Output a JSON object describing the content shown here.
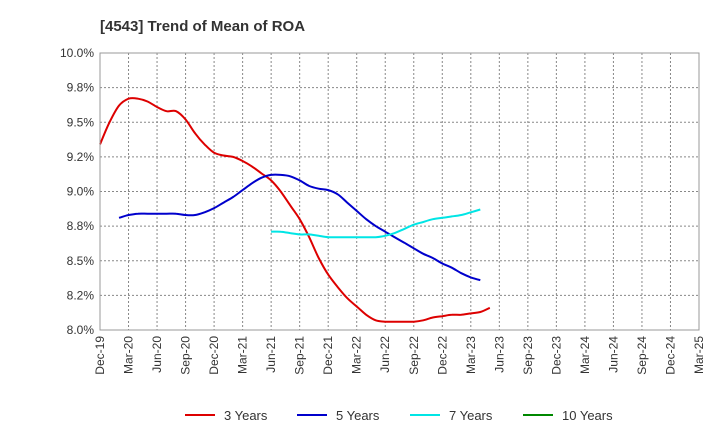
{
  "chart_data": {
    "type": "line",
    "title": "[4543]  Trend of Mean of ROA",
    "xlabel": "",
    "ylabel": "",
    "x_tick_labels": [
      "Dec-19",
      "Mar-20",
      "Jun-20",
      "Sep-20",
      "Dec-20",
      "Mar-21",
      "Jun-21",
      "Sep-21",
      "Dec-21",
      "Mar-22",
      "Jun-22",
      "Sep-22",
      "Dec-22",
      "Mar-23",
      "Jun-23",
      "Sep-23",
      "Dec-23",
      "Mar-24",
      "Jun-24",
      "Sep-24",
      "Dec-24",
      "Mar-25"
    ],
    "y_tick_labels": [
      "10.0%",
      "9.8%",
      "9.5%",
      "9.2%",
      "9.0%",
      "8.8%",
      "8.5%",
      "8.2%",
      "8.0%"
    ],
    "ylim": [
      8.0,
      10.0
    ],
    "grid": true,
    "legend_position": "bottom",
    "series": [
      {
        "name": "3 Years",
        "color": "#dd0000",
        "values": [
          9.34,
          9.5,
          9.62,
          9.67,
          9.67,
          9.65,
          9.61,
          9.58,
          9.58,
          9.52,
          9.42,
          9.34,
          9.28,
          9.26,
          9.25,
          9.22,
          9.18,
          9.13,
          9.08,
          9.0,
          8.9,
          8.8,
          8.67,
          8.52,
          8.4,
          8.31,
          8.23,
          8.17,
          8.11,
          8.07,
          8.06,
          8.06,
          8.06,
          8.06,
          8.07,
          8.09,
          8.1,
          8.11,
          8.11,
          8.12,
          8.13,
          8.16
        ]
      },
      {
        "name": "5 Years",
        "color": "#0000cc",
        "values": [
          null,
          null,
          8.81,
          8.83,
          8.84,
          8.84,
          8.84,
          8.84,
          8.84,
          8.83,
          8.83,
          8.85,
          8.88,
          8.92,
          8.96,
          9.01,
          9.06,
          9.1,
          9.12,
          9.12,
          9.11,
          9.08,
          9.04,
          9.02,
          9.01,
          8.98,
          8.92,
          8.86,
          8.8,
          8.75,
          8.71,
          8.67,
          8.63,
          8.59,
          8.55,
          8.52,
          8.48,
          8.45,
          8.41,
          8.38,
          8.36
        ]
      },
      {
        "name": "7 Years",
        "color": "#00e5e5",
        "values": [
          null,
          null,
          null,
          null,
          null,
          null,
          null,
          null,
          null,
          null,
          null,
          null,
          null,
          null,
          null,
          null,
          null,
          null,
          8.71,
          8.71,
          8.7,
          8.69,
          8.69,
          8.68,
          8.67,
          8.67,
          8.67,
          8.67,
          8.67,
          8.67,
          8.68,
          8.7,
          8.73,
          8.76,
          8.78,
          8.8,
          8.81,
          8.82,
          8.83,
          8.85,
          8.87
        ]
      },
      {
        "name": "10 Years",
        "color": "#008800",
        "values": []
      }
    ]
  }
}
